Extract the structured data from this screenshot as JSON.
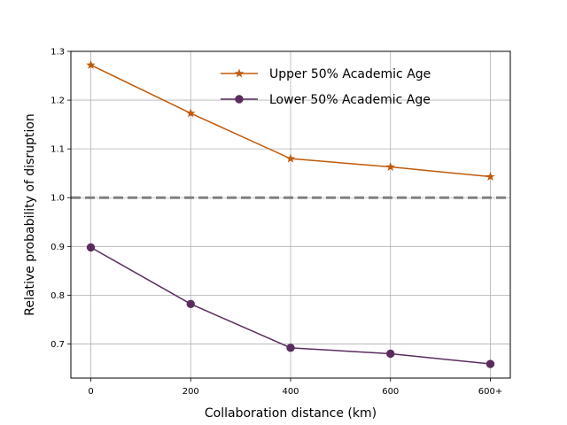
{
  "chart_data": {
    "type": "line",
    "title": "",
    "xlabel": "Collaboration distance (km)",
    "ylabel": "Relative probability of disruption",
    "categories": [
      "0",
      "200",
      "400",
      "600",
      "600+"
    ],
    "ylim": [
      0.63,
      1.3
    ],
    "yticks": [
      0.7,
      0.8,
      0.9,
      1.0,
      1.1,
      1.2,
      1.3
    ],
    "ytick_labels": [
      "0.7",
      "0.8",
      "0.9",
      "1.0",
      "1.1",
      "1.2",
      "1.3"
    ],
    "grid": true,
    "legend_position": "top-right",
    "reference_line": {
      "y": 1.0,
      "style": "dashed",
      "color": "#808080"
    },
    "series": [
      {
        "name": "Upper 50% Academic Age",
        "values": [
          1.272,
          1.173,
          1.08,
          1.063,
          1.043
        ],
        "color": "#c05a0a",
        "marker": "star"
      },
      {
        "name": "Lower 50% Academic Age",
        "values": [
          0.898,
          0.782,
          0.692,
          0.68,
          0.659
        ],
        "color": "#5a2d5e",
        "marker": "circle"
      }
    ]
  }
}
